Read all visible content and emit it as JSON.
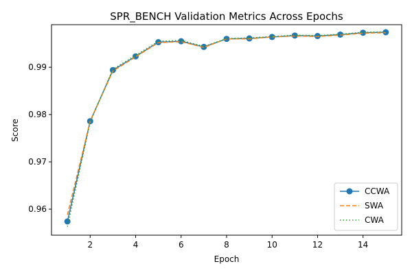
{
  "chart_data": {
    "type": "line",
    "title": "SPR_BENCH Validation Metrics Across Epochs",
    "xlabel": "Epoch",
    "ylabel": "Score",
    "xlim": [
      0.3,
      15.7
    ],
    "ylim": [
      0.9545,
      0.999
    ],
    "xticks": [
      2,
      4,
      6,
      8,
      10,
      12,
      14
    ],
    "yticks": [
      0.96,
      0.97,
      0.98,
      0.99
    ],
    "xtick_labels": [
      "2",
      "4",
      "6",
      "8",
      "10",
      "12",
      "14"
    ],
    "ytick_labels": [
      "0.96",
      "0.97",
      "0.98",
      "0.99"
    ],
    "grid": false,
    "legend_position": "lower-right",
    "x": [
      1,
      2,
      3,
      4,
      5,
      6,
      7,
      8,
      9,
      10,
      11,
      12,
      13,
      14,
      15
    ],
    "series": [
      {
        "name": "CCWA",
        "color": "#1f77b4",
        "line_style": "solid",
        "marker": "circle",
        "values": [
          0.9574,
          0.9786,
          0.9894,
          0.9923,
          0.9953,
          0.9955,
          0.9943,
          0.996,
          0.9961,
          0.9964,
          0.9967,
          0.9966,
          0.9969,
          0.9973,
          0.9974
        ]
      },
      {
        "name": "SWA",
        "color": "#ff7f0e",
        "line_style": "dashed",
        "marker": "none",
        "values": [
          0.9588,
          0.9786,
          0.9892,
          0.9922,
          0.9952,
          0.9954,
          0.9942,
          0.996,
          0.996,
          0.9964,
          0.9966,
          0.9965,
          0.9968,
          0.9972,
          0.9973
        ]
      },
      {
        "name": "CWA",
        "color": "#2ca02c",
        "line_style": "dotted",
        "marker": "none",
        "values": [
          0.9563,
          0.9784,
          0.9896,
          0.9925,
          0.9955,
          0.9957,
          0.9944,
          0.9961,
          0.9962,
          0.9965,
          0.9968,
          0.9967,
          0.997,
          0.9974,
          0.9975
        ]
      }
    ]
  }
}
